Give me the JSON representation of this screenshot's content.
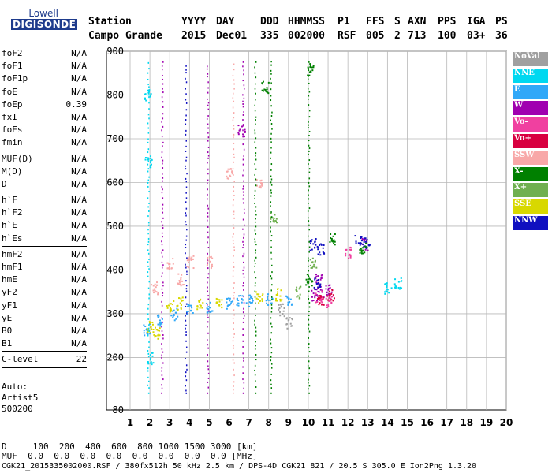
{
  "logo": {
    "line1": "Lowell",
    "line2": "DIGISONDE"
  },
  "header": {
    "labels": [
      "Station",
      "YYYY",
      "DAY",
      "DDD",
      "HHMMSS",
      "P1",
      "FFS",
      "S",
      "AXN",
      "PPS",
      "IGA",
      "PS"
    ],
    "values": [
      "Campo Grande",
      "2015",
      "Dec01",
      "335",
      "002000",
      "RSF",
      "005",
      "2",
      "713",
      "100",
      "03+",
      "36"
    ]
  },
  "params": {
    "group1": [
      {
        "name": "foF2",
        "value": "N/A"
      },
      {
        "name": "foF1",
        "value": "N/A"
      },
      {
        "name": "foF1p",
        "value": "N/A"
      },
      {
        "name": "foE",
        "value": "N/A"
      },
      {
        "name": "foEp",
        "value": "0.39"
      },
      {
        "name": "fxI",
        "value": "N/A"
      },
      {
        "name": "foEs",
        "value": "N/A"
      },
      {
        "name": "fmin",
        "value": "N/A"
      }
    ],
    "group2": [
      {
        "name": "MUF(D)",
        "value": "N/A"
      },
      {
        "name": "M(D)",
        "value": "N/A"
      },
      {
        "name": "D",
        "value": "N/A"
      }
    ],
    "group3": [
      {
        "name": "h`F",
        "value": "N/A"
      },
      {
        "name": "h`F2",
        "value": "N/A"
      },
      {
        "name": "h`E",
        "value": "N/A"
      },
      {
        "name": "h`Es",
        "value": "N/A"
      }
    ],
    "group4": [
      {
        "name": "hmF2",
        "value": "N/A"
      },
      {
        "name": "hmF1",
        "value": "N/A"
      },
      {
        "name": "hmE",
        "value": "N/A"
      },
      {
        "name": "yF2",
        "value": "N/A"
      },
      {
        "name": "yF1",
        "value": "N/A"
      },
      {
        "name": "yE",
        "value": "N/A"
      },
      {
        "name": "B0",
        "value": "N/A"
      },
      {
        "name": "B1",
        "value": "N/A"
      }
    ],
    "group5": [
      {
        "name": "C-level",
        "value": "22"
      }
    ]
  },
  "auto": {
    "line1": "Auto:",
    "line2": "Artist5",
    "line3": "500200"
  },
  "legend": [
    {
      "label": "NoVal",
      "color": "#a0a0a0"
    },
    {
      "label": "NNE",
      "color": "#00d8f0"
    },
    {
      "label": "E",
      "color": "#30a8f8"
    },
    {
      "label": "W",
      "color": "#a000b0"
    },
    {
      "label": "Vo-",
      "color": "#f040a0"
    },
    {
      "label": "Vo+",
      "color": "#d80040"
    },
    {
      "label": "SSW",
      "color": "#f8a8a8"
    },
    {
      "label": "X-",
      "color": "#008000"
    },
    {
      "label": "X+",
      "color": "#70b050"
    },
    {
      "label": "SSE",
      "color": "#d8d800"
    },
    {
      "label": "NNW",
      "color": "#1010c0"
    }
  ],
  "footer": {
    "d_row": "D     100  200  400  600  800 1000 1500 3000 [km]",
    "muf_row": "MUF  0.0  0.0  0.0  0.0  0.0  0.0  0.0  0.0 [MHz]",
    "info": "CGK21_2015335002000.RSF / 380fx512h 50 kHz 2.5 km / DPS-4D CGK21 821 / 20.5 S 305.0 E Ion2Png 1.3.20"
  },
  "chart_data": {
    "type": "scatter",
    "xlabel": "",
    "ylabel": "",
    "xlim": [
      1,
      20
    ],
    "ylim": [
      80,
      900
    ],
    "xticks": [
      1,
      2,
      3,
      4,
      5,
      6,
      7,
      8,
      9,
      10,
      11,
      12,
      13,
      14,
      15,
      16,
      17,
      18,
      19,
      20
    ],
    "yticks": [
      80,
      200,
      300,
      400,
      500,
      600,
      700,
      800,
      900
    ],
    "grid": true,
    "series": [
      {
        "name": "E",
        "color": "#30a8f8",
        "points": [
          [
            1.8,
            265
          ],
          [
            2.5,
            285
          ],
          [
            3.2,
            300
          ],
          [
            4.0,
            310
          ],
          [
            5.0,
            318
          ],
          [
            6.0,
            325
          ],
          [
            7.0,
            330
          ],
          [
            8.0,
            335
          ],
          [
            9.0,
            335
          ],
          [
            6.5,
            330
          ]
        ]
      },
      {
        "name": "SSE",
        "color": "#d8d800",
        "points": [
          [
            2.0,
            270
          ],
          [
            3.0,
            320
          ],
          [
            3.5,
            325
          ],
          [
            4.5,
            322
          ],
          [
            5.5,
            328
          ],
          [
            7.5,
            338
          ],
          [
            8.5,
            345
          ],
          [
            2.3,
            258
          ]
        ]
      },
      {
        "name": "SSW",
        "color": "#f8a8a8",
        "points": [
          [
            2.2,
            360
          ],
          [
            3.0,
            415
          ],
          [
            4.0,
            420
          ],
          [
            5.0,
            420
          ],
          [
            3.5,
            380
          ],
          [
            6.0,
            620
          ],
          [
            7.5,
            600
          ]
        ]
      },
      {
        "name": "W",
        "color": "#a000b0",
        "points": [
          [
            10.3,
            345
          ],
          [
            10.6,
            350
          ],
          [
            11.0,
            355
          ],
          [
            10.5,
            380
          ],
          [
            12.8,
            460
          ],
          [
            6.6,
            720
          ]
        ]
      },
      {
        "name": "NNW",
        "color": "#1010c0",
        "points": [
          [
            10.2,
            460
          ],
          [
            10.6,
            450
          ],
          [
            12.5,
            470
          ],
          [
            12.9,
            465
          ],
          [
            10.4,
            370
          ]
        ]
      },
      {
        "name": "NNE",
        "color": "#00d8f0",
        "points": [
          [
            2.0,
            200
          ],
          [
            1.9,
            650
          ],
          [
            1.85,
            800
          ],
          [
            14.0,
            360
          ],
          [
            14.5,
            370
          ]
        ]
      },
      {
        "name": "X-",
        "color": "#008000",
        "points": [
          [
            7.8,
            820
          ],
          [
            10.1,
            860
          ],
          [
            10.0,
            380
          ],
          [
            11.2,
            470
          ],
          [
            12.7,
            450
          ]
        ]
      },
      {
        "name": "X+",
        "color": "#70b050",
        "points": [
          [
            8.2,
            520
          ],
          [
            9.5,
            350
          ],
          [
            10.2,
            420
          ]
        ]
      },
      {
        "name": "Vo-",
        "color": "#f040a0",
        "points": [
          [
            10.5,
            340
          ],
          [
            11.0,
            330
          ],
          [
            12.0,
            440
          ]
        ]
      },
      {
        "name": "Vo+",
        "color": "#d80040",
        "points": [
          [
            10.6,
            335
          ],
          [
            11.1,
            345
          ]
        ]
      },
      {
        "name": "NoVal",
        "color": "#a0a0a0",
        "points": [
          [
            9.0,
            280
          ],
          [
            8.6,
            310
          ]
        ]
      }
    ]
  }
}
